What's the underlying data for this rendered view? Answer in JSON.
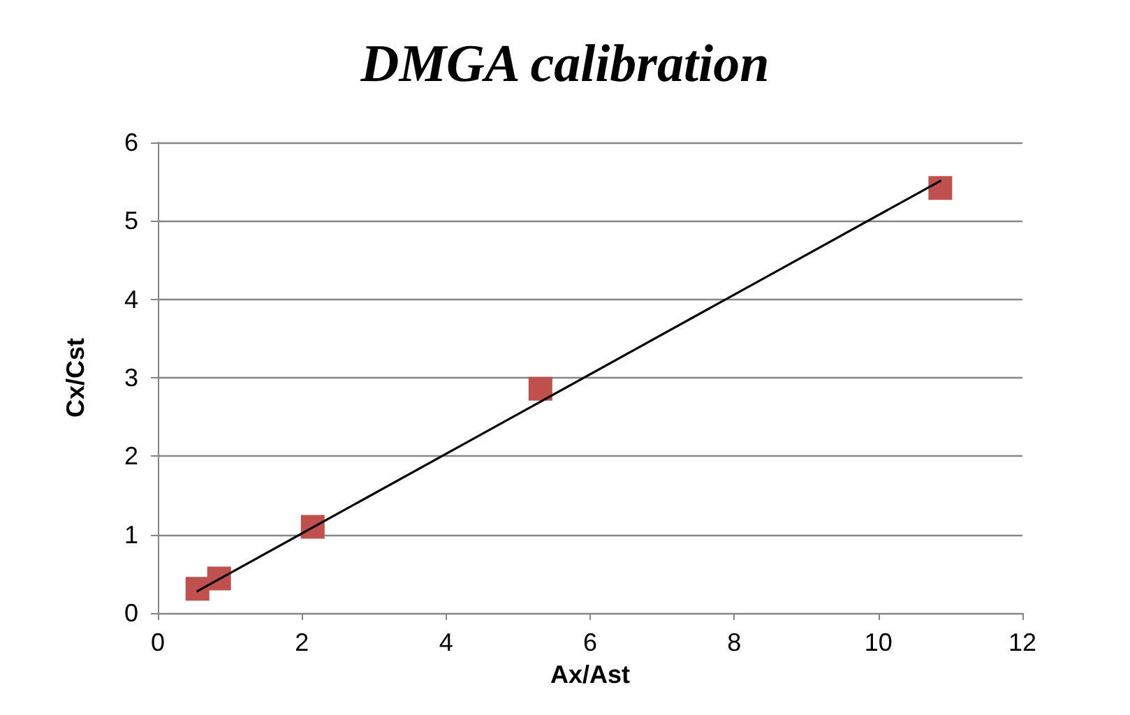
{
  "chart_data": {
    "type": "scatter",
    "title": "DMGA calibration",
    "xlabel": "Ax/Ast",
    "ylabel": "Cx/Cst",
    "series": [
      {
        "color": "#c0504d",
        "x": [
          0.55,
          0.85,
          2.15,
          5.31,
          10.86
        ],
        "values": [
          0.31,
          0.44,
          1.1,
          2.86,
          5.42
        ],
        "marker": "square"
      },
      {
        "type": "line",
        "color": "#000000",
        "x": [
          0.55,
          10.86
        ],
        "values": [
          0.28,
          5.51
        ],
        "marker": "none",
        "line_style": "solid"
      }
    ],
    "xlim": [
      0,
      12
    ],
    "xticks": [
      0,
      2,
      4,
      6,
      8,
      10,
      12
    ],
    "ylim": [
      0,
      6
    ],
    "yticks": [
      0,
      1,
      2,
      3,
      4,
      5,
      6
    ],
    "grid": "y"
  }
}
